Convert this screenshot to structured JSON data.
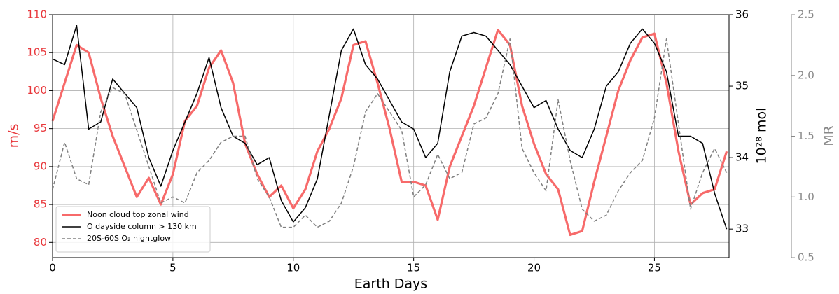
{
  "chart_data": {
    "type": "line",
    "xlabel": "Earth Days",
    "ylabel": "m/s",
    "y2label": "10²⁸ mol",
    "y3label": "MR",
    "x": [
      0,
      0.5,
      1,
      1.5,
      2,
      2.5,
      3,
      3.5,
      4,
      4.5,
      5,
      5.5,
      6,
      6.5,
      7,
      7.5,
      8,
      8.5,
      9,
      9.5,
      10,
      10.5,
      11,
      11.5,
      12,
      12.5,
      13,
      13.5,
      14,
      14.5,
      15,
      15.5,
      16,
      16.5,
      17,
      17.5,
      18,
      18.5,
      19,
      19.5,
      20,
      20.5,
      21,
      21.5,
      22,
      22.5,
      23,
      23.5,
      24,
      24.5,
      25,
      25.5,
      26,
      26.5,
      27,
      27.5,
      28
    ],
    "xlim": [
      0,
      28.1
    ],
    "xticks": [
      0,
      5,
      10,
      15,
      20,
      25
    ],
    "ylim": [
      78,
      110
    ],
    "yticks": [
      80,
      85,
      90,
      95,
      100,
      105,
      110
    ],
    "y2lim": [
      32.6,
      36
    ],
    "y2ticks": [
      33,
      34,
      35,
      36
    ],
    "y3lim": [
      0.5,
      2.5
    ],
    "y3ticks": [
      {
        "value": 0.5,
        "label": "0.5"
      },
      {
        "value": 1.0,
        "label": "1.0"
      },
      {
        "value": 1.5,
        "label": "1.5"
      },
      {
        "value": 2.0,
        "label": "2.0"
      },
      {
        "value": 2.5,
        "label": "2.5"
      }
    ],
    "grid": true,
    "legend": "lower left",
    "series": [
      {
        "name": "Noon cloud top zonal wind",
        "color": "#f76a6a",
        "axis": "y",
        "style": "solid",
        "values": [
          96,
          101,
          106,
          105,
          99,
          94,
          90,
          86,
          88.5,
          85,
          89,
          96,
          98,
          103,
          105.3,
          101,
          93,
          89,
          86,
          87.5,
          84.5,
          87,
          92,
          95,
          99,
          106,
          106.5,
          101,
          95,
          88,
          88,
          87.5,
          83,
          90,
          94,
          98,
          103,
          108,
          106,
          98,
          93,
          89,
          87,
          81,
          81.5,
          88,
          94,
          100,
          104,
          107,
          107.5,
          101,
          92,
          85,
          86.5,
          87,
          92
        ]
      },
      {
        "name": "O dayside column > 130 km",
        "color": "#000000",
        "axis": "y2",
        "style": "solid",
        "values": [
          35.38,
          35.3,
          35.85,
          34.4,
          34.5,
          35.1,
          34.9,
          34.7,
          34.0,
          33.6,
          34.1,
          34.5,
          34.9,
          35.4,
          34.7,
          34.3,
          34.2,
          33.9,
          34.0,
          33.4,
          33.1,
          33.3,
          33.7,
          34.6,
          35.5,
          35.8,
          35.3,
          35.1,
          34.8,
          34.5,
          34.4,
          34.0,
          34.2,
          35.2,
          35.7,
          35.75,
          35.7,
          35.5,
          35.3,
          35.0,
          34.7,
          34.8,
          34.4,
          34.1,
          34.0,
          34.4,
          35.0,
          35.2,
          35.6,
          35.8,
          35.6,
          35.2,
          34.3,
          34.3,
          34.2,
          33.5,
          33.0
        ]
      },
      {
        "name": "20S-60S O₂ nightglow",
        "color": "#808080",
        "axis": "y3",
        "style": "dashed",
        "values": [
          1.06,
          1.45,
          1.15,
          1.1,
          1.7,
          1.9,
          1.85,
          1.55,
          1.25,
          0.95,
          1.0,
          0.95,
          1.2,
          1.3,
          1.45,
          1.5,
          1.5,
          1.15,
          1.0,
          0.75,
          0.75,
          0.85,
          0.75,
          0.8,
          0.95,
          1.25,
          1.7,
          1.85,
          1.7,
          1.55,
          1.0,
          1.1,
          1.35,
          1.15,
          1.2,
          1.6,
          1.65,
          1.85,
          2.3,
          1.4,
          1.2,
          1.05,
          1.8,
          1.3,
          0.9,
          0.8,
          0.85,
          1.05,
          1.2,
          1.3,
          1.65,
          2.3,
          1.6,
          0.9,
          1.2,
          1.4,
          1.2
        ]
      }
    ]
  }
}
